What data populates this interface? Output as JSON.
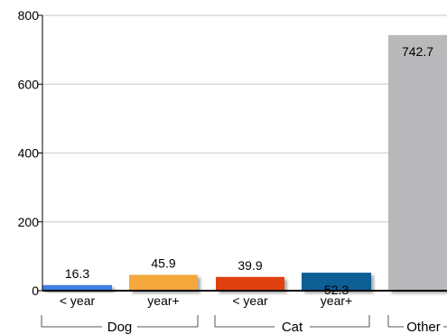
{
  "chart_data": {
    "type": "bar",
    "ylim": [
      0,
      800
    ],
    "y_ticks": [
      "800",
      "600",
      "400",
      "200",
      "0"
    ],
    "grid": true,
    "categories": [
      "< year",
      "year+",
      "< year",
      "year+",
      "Other"
    ],
    "values": [
      16.3,
      45.9,
      39.9,
      52.3,
      742.7
    ],
    "value_labels": [
      "16.3",
      "45.9",
      "39.9",
      "52.3",
      "742.7"
    ],
    "groups": [
      {
        "label": "Dog",
        "bars": [
          0,
          1
        ]
      },
      {
        "label": "Cat",
        "bars": [
          2,
          3
        ]
      },
      {
        "label": "Other",
        "bars": [
          4
        ]
      }
    ],
    "colors": [
      "#3f7fe6",
      "#f5a83a",
      "#e0400e",
      "#0b5f94",
      "#b9b8ba"
    ]
  }
}
